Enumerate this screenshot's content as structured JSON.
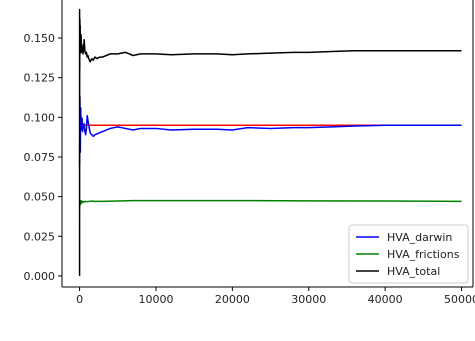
{
  "chart_data": {
    "type": "line",
    "title": "",
    "xlabel": "",
    "ylabel": "",
    "xlim": [
      -2300,
      51500
    ],
    "ylim": [
      -0.007,
      0.174
    ],
    "x_ticks": [
      0,
      10000,
      20000,
      30000,
      40000,
      50000
    ],
    "x_tick_labels": [
      "0",
      "10000",
      "20000",
      "30000",
      "40000",
      "50000"
    ],
    "y_ticks": [
      0.0,
      0.025,
      0.05,
      0.075,
      0.1,
      0.125,
      0.15
    ],
    "y_tick_labels": [
      "0.000",
      "0.025",
      "0.050",
      "0.075",
      "0.100",
      "0.125",
      "0.150"
    ],
    "grid": false,
    "legend_position": "lower-right",
    "reference_line": {
      "y": 0.095,
      "x_range": [
        500,
        50000
      ],
      "color": "#ff0000"
    },
    "series": [
      {
        "name": "HVA_darwin",
        "color": "#0000ff",
        "x": [
          0,
          50,
          100,
          150,
          200,
          250,
          300,
          350,
          400,
          450,
          500,
          600,
          700,
          800,
          900,
          1000,
          1200,
          1400,
          1600,
          1800,
          2000,
          2500,
          3000,
          3500,
          4000,
          5000,
          6000,
          7000,
          8000,
          10000,
          12000,
          15000,
          18000,
          20000,
          22000,
          25000,
          28000,
          30000,
          33000,
          36000,
          40000,
          43000,
          46000,
          48000,
          50000
        ],
        "y": [
          0.07,
          0.113,
          0.078,
          0.106,
          0.092,
          0.1,
          0.095,
          0.099,
          0.091,
          0.093,
          0.094,
          0.096,
          0.091,
          0.089,
          0.093,
          0.101,
          0.095,
          0.09,
          0.089,
          0.088,
          0.089,
          0.09,
          0.091,
          0.092,
          0.093,
          0.094,
          0.093,
          0.092,
          0.093,
          0.093,
          0.092,
          0.0925,
          0.0925,
          0.092,
          0.0935,
          0.093,
          0.0935,
          0.0935,
          0.094,
          0.0945,
          0.095,
          0.095,
          0.095,
          0.095,
          0.095
        ]
      },
      {
        "name": "HVA_frictions",
        "color": "#008000",
        "x": [
          0,
          50,
          100,
          200,
          300,
          400,
          500,
          700,
          1000,
          1500,
          2000,
          3000,
          5000,
          7000,
          10000,
          20000,
          30000,
          40000,
          50000
        ],
        "y": [
          0.043,
          0.047,
          0.045,
          0.0475,
          0.046,
          0.047,
          0.0465,
          0.047,
          0.0468,
          0.0472,
          0.047,
          0.047,
          0.0472,
          0.0475,
          0.0475,
          0.0475,
          0.0473,
          0.0472,
          0.047
        ]
      },
      {
        "name": "HVA_total",
        "color": "#000000",
        "x": [
          0,
          2,
          4,
          6,
          8,
          12,
          20,
          40,
          60,
          80,
          100,
          120,
          150,
          200,
          250,
          300,
          350,
          400,
          450,
          500,
          600,
          700,
          800,
          900,
          1000,
          1100,
          1200,
          1400,
          1600,
          1800,
          2000,
          2300,
          2600,
          3000,
          3500,
          4000,
          5000,
          6000,
          7000,
          8000,
          10000,
          12000,
          15000,
          18000,
          20000,
          22000,
          25000,
          28000,
          30000,
          33000,
          36000,
          40000,
          43000,
          46000,
          48000,
          50000
        ],
        "y": [
          0.0,
          0.168,
          0.04,
          0.155,
          0.07,
          0.145,
          0.13,
          0.162,
          0.14,
          0.158,
          0.142,
          0.15,
          0.143,
          0.152,
          0.141,
          0.146,
          0.142,
          0.144,
          0.14,
          0.142,
          0.149,
          0.142,
          0.14,
          0.141,
          0.138,
          0.139,
          0.137,
          0.135,
          0.137,
          0.136,
          0.138,
          0.137,
          0.138,
          0.138,
          0.139,
          0.14,
          0.14,
          0.141,
          0.139,
          0.14,
          0.14,
          0.1395,
          0.14,
          0.14,
          0.1395,
          0.14,
          0.1405,
          0.141,
          0.141,
          0.1415,
          0.142,
          0.142,
          0.142,
          0.142,
          0.142,
          0.142
        ]
      }
    ]
  }
}
